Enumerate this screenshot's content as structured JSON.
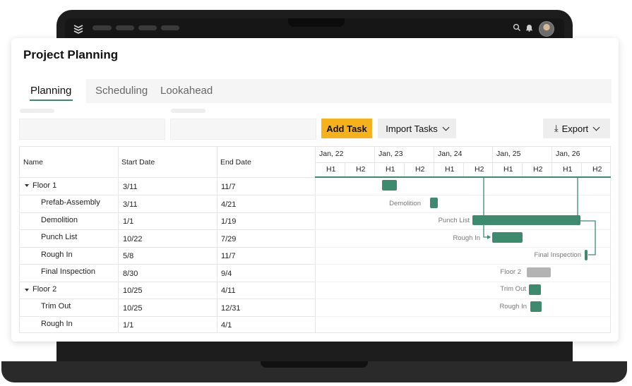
{
  "app": {
    "title": "Project Planning",
    "topbar_icons": [
      "stack-logo-icon",
      "search-icon",
      "bell-icon"
    ],
    "accent_color": "#3e8a6e",
    "button_color": "#f7b21b",
    "muted_bar_color": "#b3b3b3"
  },
  "tabs": [
    {
      "label": "Planning",
      "active": true
    },
    {
      "label": "Scheduling",
      "active": false
    },
    {
      "label": "Lookahead",
      "active": false
    }
  ],
  "toolbar": {
    "add_task": "Add Task",
    "import_tasks": "Import Tasks",
    "export": "Export"
  },
  "table": {
    "columns": [
      "Name",
      "Start Date",
      "End Date"
    ],
    "rows": [
      {
        "name": "Floor 1",
        "start": "3/11",
        "end": "11/7",
        "group": true
      },
      {
        "name": "Prefab-Assembly",
        "start": "3/11",
        "end": "4/21",
        "group": false
      },
      {
        "name": "Demolition",
        "start": "1/1",
        "end": "1/19",
        "group": false
      },
      {
        "name": "Punch List",
        "start": "10/22",
        "end": "7/29",
        "group": false
      },
      {
        "name": "Rough In",
        "start": "5/8",
        "end": "11/7",
        "group": false
      },
      {
        "name": "Final Inspection",
        "start": "8/30",
        "end": "9/4",
        "group": false
      },
      {
        "name": "Floor 2",
        "start": "10/25",
        "end": "4/11",
        "group": true
      },
      {
        "name": "Trim Out",
        "start": "10/25",
        "end": "12/31",
        "group": false
      },
      {
        "name": "Rough In",
        "start": "1/1",
        "end": "4/1",
        "group": false
      }
    ]
  },
  "gantt": {
    "days": [
      "Jan, 22",
      "Jan, 23",
      "Jan, 24",
      "Jan, 25",
      "Jan, 26"
    ],
    "halves": [
      "H1",
      "H2"
    ],
    "bars": [
      {
        "label": "",
        "color": "green"
      },
      {
        "label": "Demolition",
        "color": "green"
      },
      {
        "label": "Punch List",
        "color": "green"
      },
      {
        "label": "Rough In",
        "color": "green"
      },
      {
        "label": "Final Inspection",
        "color": "green"
      },
      {
        "label": "Floor 2",
        "color": "gray"
      },
      {
        "label": "Trim Out",
        "color": "green"
      },
      {
        "label": "Rough In",
        "color": "green"
      }
    ]
  }
}
